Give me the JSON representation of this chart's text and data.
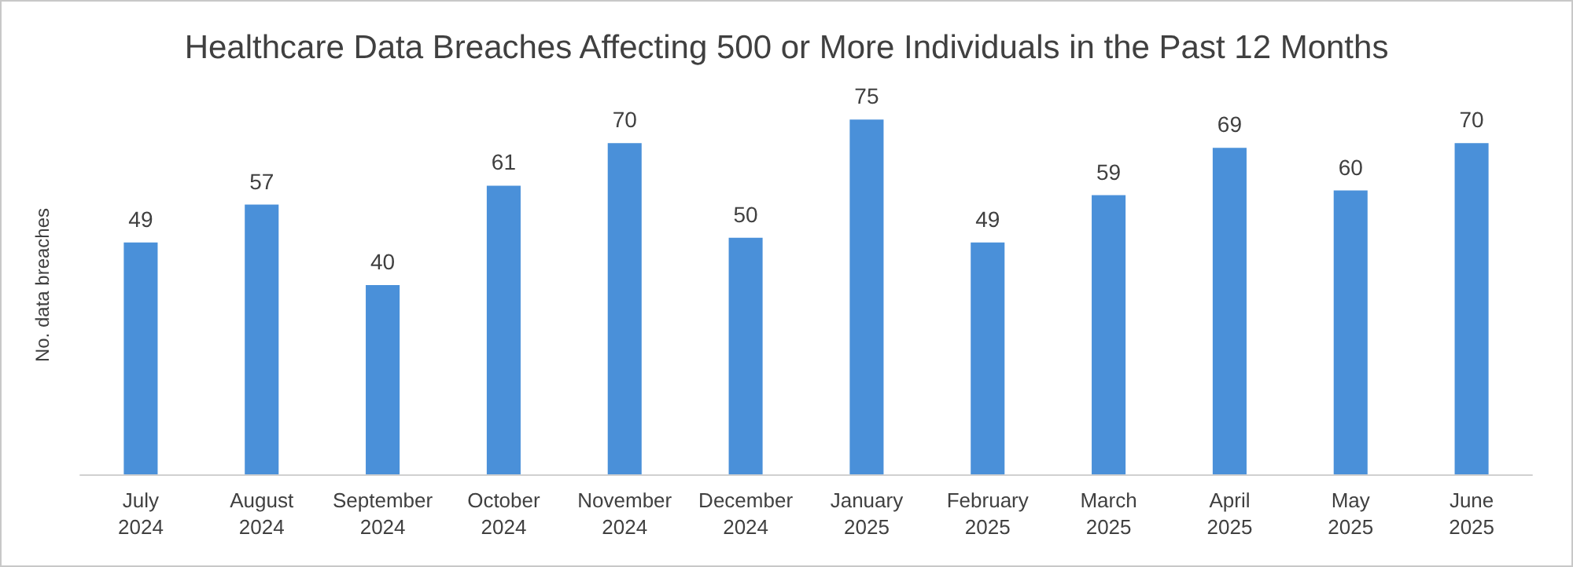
{
  "chart_data": {
    "type": "bar",
    "title": "Healthcare Data Breaches Affecting 500 or More Individuals in the Past 12 Months",
    "ylabel": "No. data breaches",
    "categories": [
      "July\n2024",
      "August\n2024",
      "September\n2024",
      "October\n2024",
      "November\n2024",
      "December\n2024",
      "January\n2025",
      "February\n2025",
      "March\n2025",
      "April\n2025",
      "May\n2025",
      "June\n2025"
    ],
    "values": [
      49,
      57,
      40,
      61,
      70,
      50,
      75,
      49,
      59,
      69,
      60,
      70
    ],
    "color": "#4a90d9",
    "data_labels": true
  }
}
